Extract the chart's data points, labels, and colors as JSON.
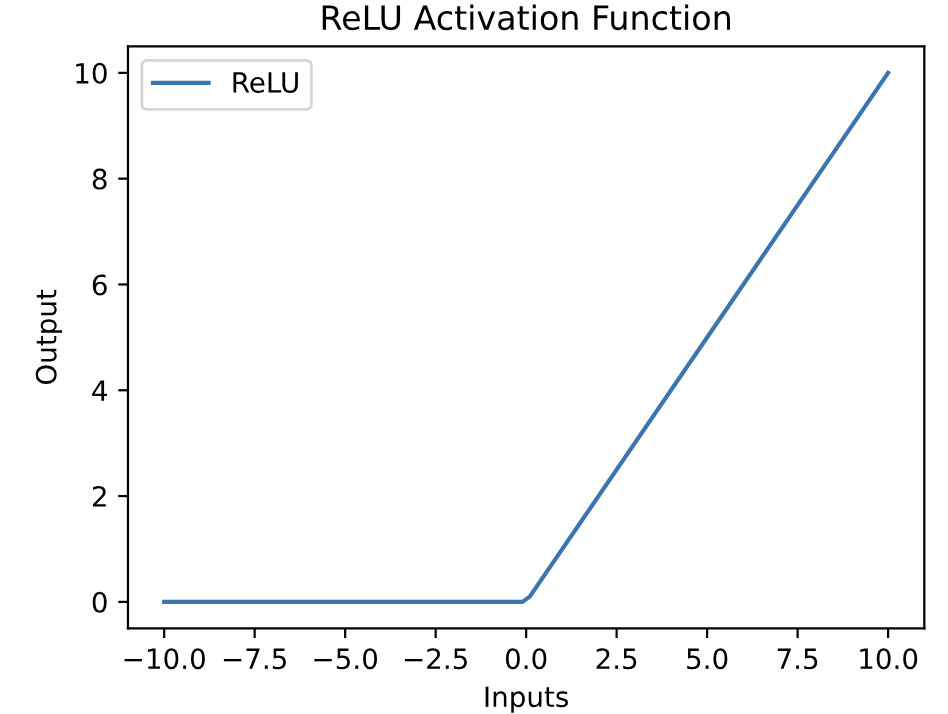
{
  "chart_data": {
    "type": "line",
    "title": "ReLU Activation Function",
    "xlabel": "Inputs",
    "ylabel": "Output",
    "x": [
      -10,
      -0.1,
      0.1,
      10
    ],
    "series": [
      {
        "name": "ReLU",
        "color": "#3b75af",
        "values": [
          0,
          0,
          0.1,
          10
        ]
      }
    ],
    "xlim": [
      -11,
      11
    ],
    "ylim": [
      -0.5,
      10.5
    ],
    "xticks": [
      {
        "value": -10,
        "label": "−10.0"
      },
      {
        "value": -7.5,
        "label": "−7.5"
      },
      {
        "value": -5,
        "label": "−5.0"
      },
      {
        "value": -2.5,
        "label": "−2.5"
      },
      {
        "value": 0,
        "label": "0.0"
      },
      {
        "value": 2.5,
        "label": "2.5"
      },
      {
        "value": 5,
        "label": "5.0"
      },
      {
        "value": 7.5,
        "label": "7.5"
      },
      {
        "value": 10,
        "label": "10.0"
      }
    ],
    "yticks": [
      0,
      2,
      4,
      6,
      8,
      10
    ],
    "legend": "top left",
    "grid": false,
    "line_style": "solid",
    "marker": "none"
  }
}
